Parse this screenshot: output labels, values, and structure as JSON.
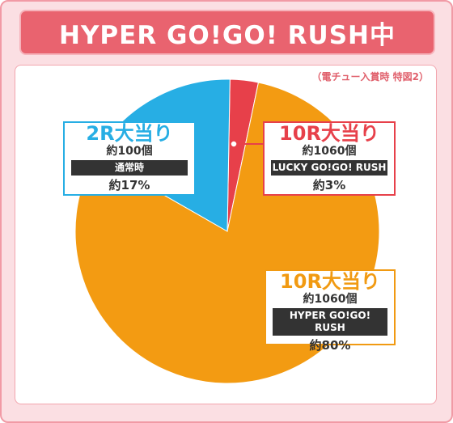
{
  "header": {
    "title": "HYPER GO!GO! RUSH中",
    "note": "（電チュー入賞時 特図2）"
  },
  "colors": {
    "blue": "#27aee4",
    "red": "#e7404a",
    "orange": "#f39b12"
  },
  "chart_data": {
    "type": "pie",
    "title": "HYPER GO!GO! RUSH中",
    "slices": [
      {
        "label": "10R大当り",
        "balls": "約1060個",
        "mode": "LUCKY GO!GO! RUSH",
        "percent_label": "約3%",
        "value": 3,
        "color": "#e7404a"
      },
      {
        "label": "10R大当り",
        "balls": "約1060個",
        "mode": "HYPER GO!GO! RUSH",
        "percent_label": "約80%",
        "value": 80,
        "color": "#f39b12"
      },
      {
        "label": "2R大当り",
        "balls": "約100個",
        "mode": "通常時",
        "percent_label": "約17%",
        "value": 17,
        "color": "#27aee4"
      }
    ]
  }
}
